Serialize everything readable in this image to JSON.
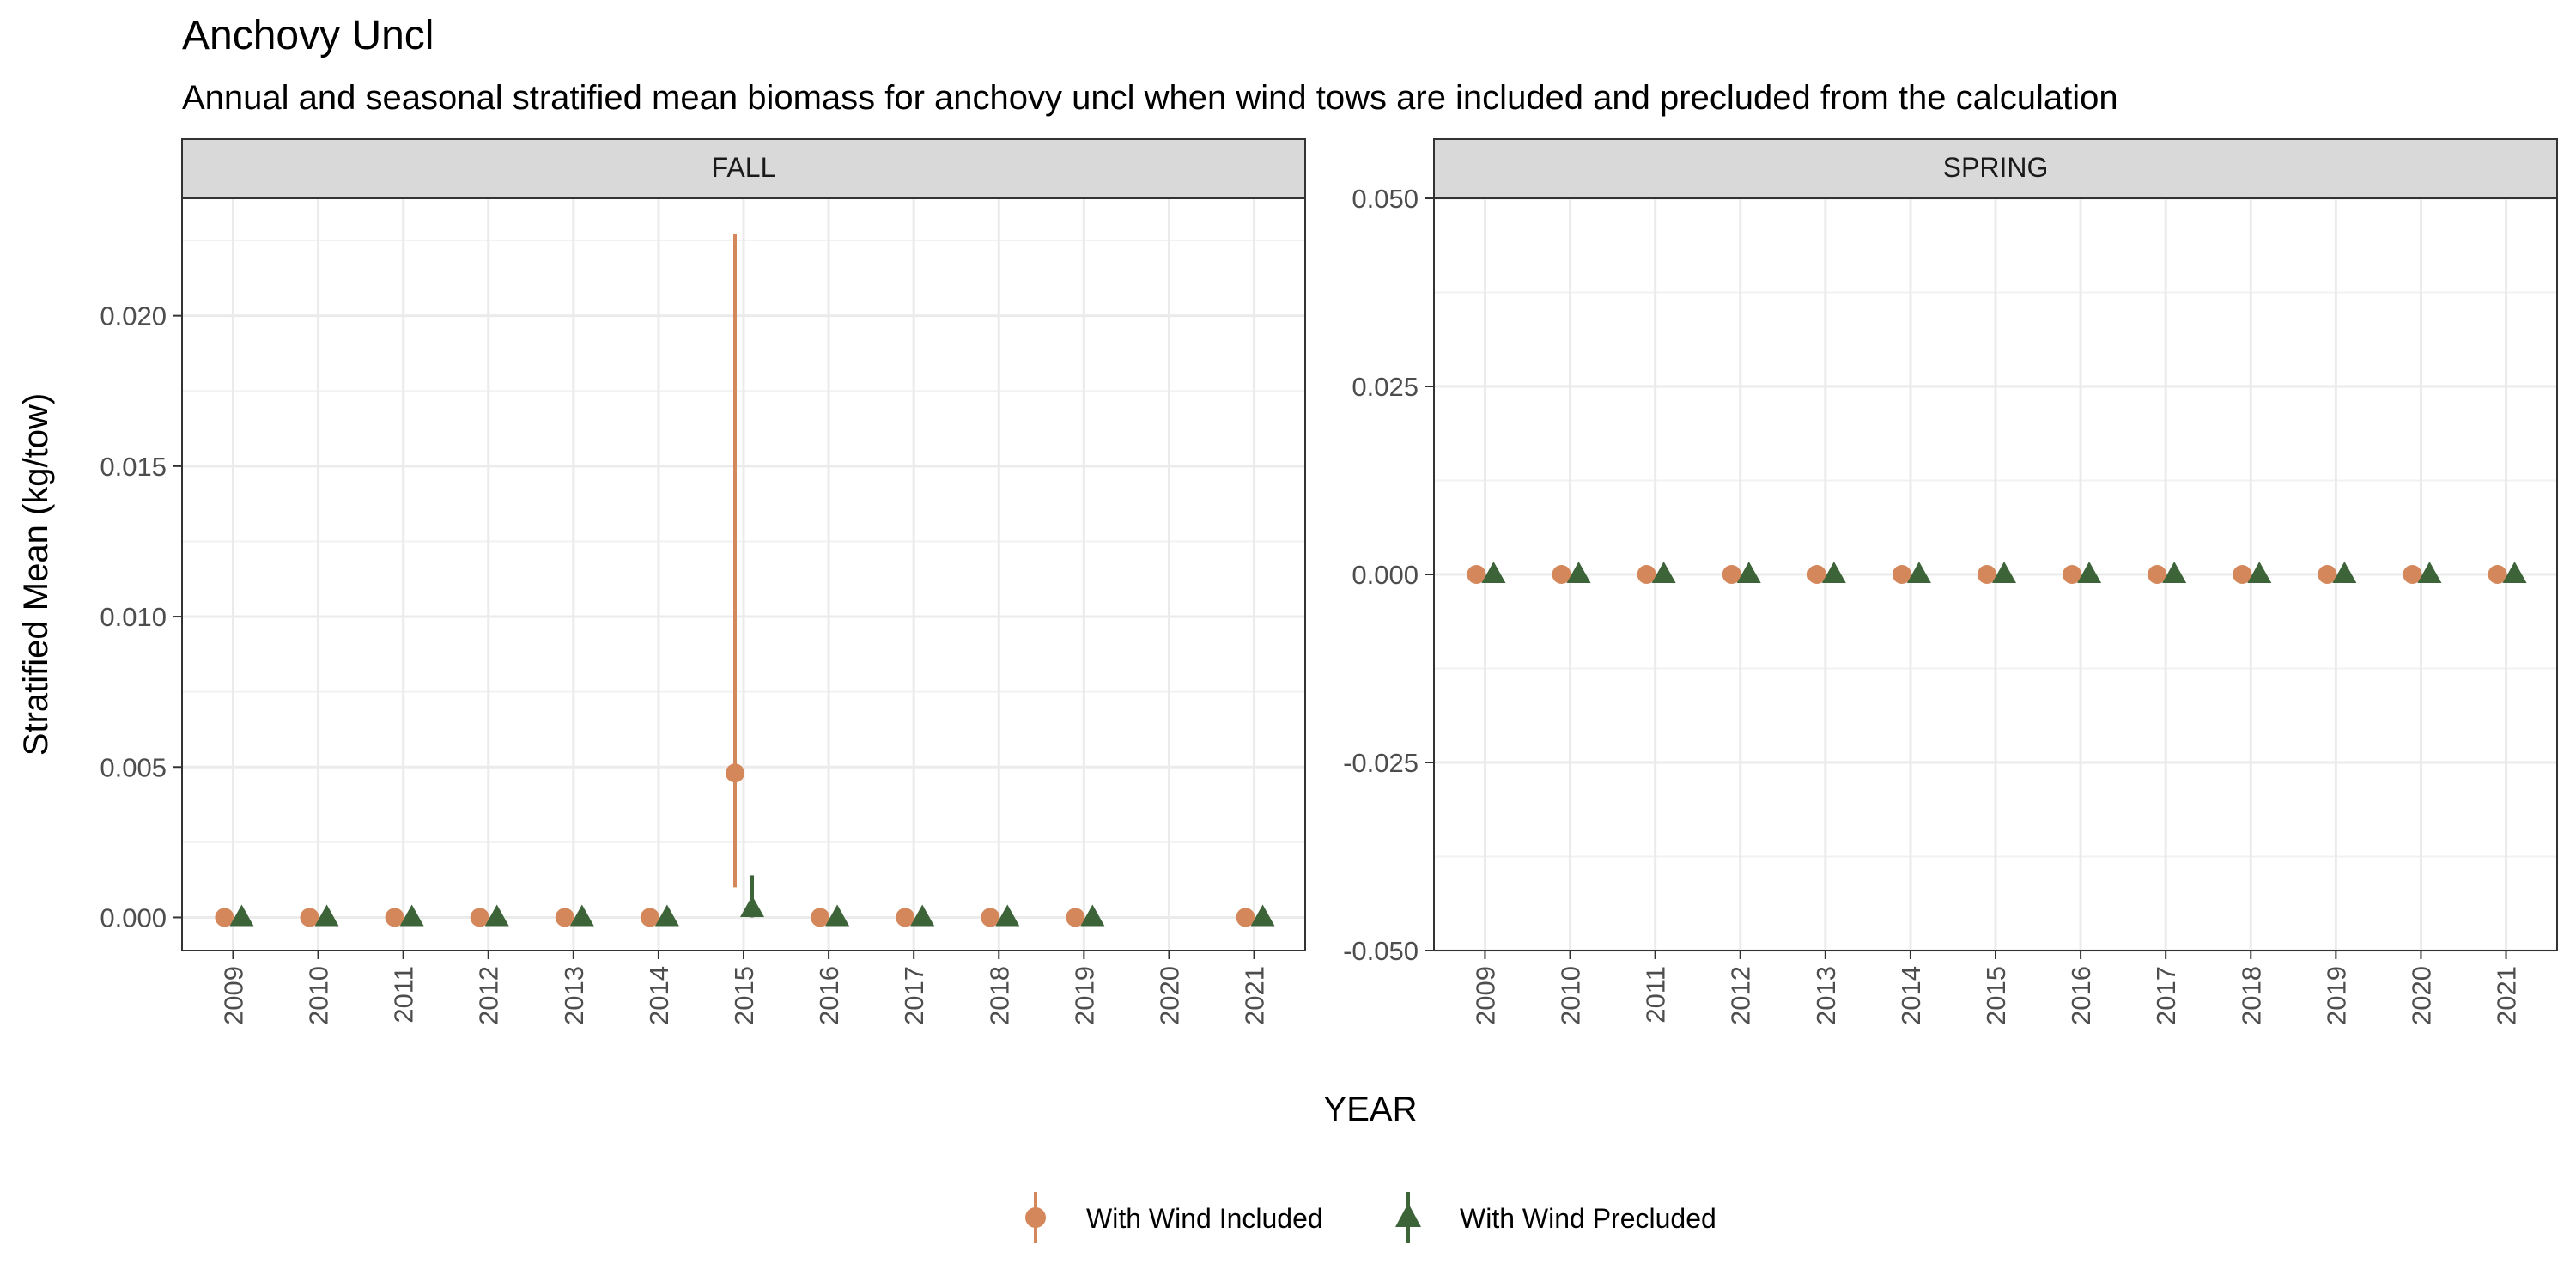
{
  "title": "Anchovy Uncl",
  "subtitle": "Annual and seasonal stratified mean biomass for anchovy uncl when wind tows are included and precluded from the calculation",
  "colors": {
    "included": "#D4875A",
    "precluded": "#3D6339",
    "strip": "#D9D9D9",
    "grid": "#EBEBEB",
    "border": "#333333"
  },
  "chart_data": {
    "type": "scatter",
    "subtype": "pointrange-faceted",
    "xlabel": "YEAR",
    "ylabel": "Stratified Mean (kg/tow)",
    "legend_position": "bottom",
    "grid": true,
    "series": [
      {
        "name": "With Wind Included",
        "marker": "circle",
        "color": "#D4875A"
      },
      {
        "name": "With Wind Precluded",
        "marker": "triangle",
        "color": "#3D6339"
      }
    ],
    "facets": [
      {
        "label": "FALL",
        "x": [
          "2009",
          "2010",
          "2011",
          "2012",
          "2013",
          "2014",
          "2015",
          "2016",
          "2017",
          "2018",
          "2019",
          "2020",
          "2021"
        ],
        "ylim": [
          -0.0011,
          0.0239
        ],
        "yticks": [
          0.0,
          0.005,
          0.01,
          0.015,
          0.02
        ],
        "ytick_labels": [
          "0.000",
          "0.005",
          "0.010",
          "0.015",
          "0.020"
        ],
        "included": {
          "values": [
            0,
            0,
            0,
            0,
            0,
            0,
            0.0048,
            0,
            0,
            0,
            0,
            null,
            0
          ],
          "lower": [
            null,
            null,
            null,
            null,
            null,
            null,
            0.001,
            null,
            null,
            null,
            null,
            null,
            null
          ],
          "upper": [
            null,
            null,
            null,
            null,
            null,
            null,
            0.0227,
            null,
            null,
            null,
            null,
            null,
            null
          ]
        },
        "precluded": {
          "values": [
            0,
            0,
            0,
            0,
            0,
            0,
            0.0003,
            0,
            0,
            0,
            0,
            null,
            0
          ],
          "lower": [
            null,
            null,
            null,
            null,
            null,
            null,
            0,
            null,
            null,
            null,
            null,
            null,
            null
          ],
          "upper": [
            null,
            null,
            null,
            null,
            null,
            null,
            0.0014,
            null,
            null,
            null,
            null,
            null,
            null
          ]
        }
      },
      {
        "label": "SPRING",
        "x": [
          "2009",
          "2010",
          "2011",
          "2012",
          "2013",
          "2014",
          "2015",
          "2016",
          "2017",
          "2018",
          "2019",
          "2020",
          "2021"
        ],
        "ylim": [
          -0.05,
          0.05
        ],
        "yticks": [
          -0.05,
          -0.025,
          0,
          0.025,
          0.05
        ],
        "ytick_labels": [
          "-0.050",
          "-0.025",
          "0.000",
          "0.025",
          "0.050"
        ],
        "included": {
          "values": [
            0,
            0,
            0,
            0,
            0,
            0,
            0,
            0,
            0,
            0,
            0,
            0,
            0
          ],
          "lower": [
            null,
            null,
            null,
            null,
            null,
            null,
            null,
            null,
            null,
            null,
            null,
            null,
            null
          ],
          "upper": [
            null,
            null,
            null,
            null,
            null,
            null,
            null,
            null,
            null,
            null,
            null,
            null,
            null
          ]
        },
        "precluded": {
          "values": [
            0,
            0,
            0,
            0,
            0,
            0,
            0,
            0,
            0,
            0,
            0,
            0,
            0
          ],
          "lower": [
            null,
            null,
            null,
            null,
            null,
            null,
            null,
            null,
            null,
            null,
            null,
            null,
            null
          ],
          "upper": [
            null,
            null,
            null,
            null,
            null,
            null,
            null,
            null,
            null,
            null,
            null,
            null,
            null
          ]
        }
      }
    ]
  }
}
